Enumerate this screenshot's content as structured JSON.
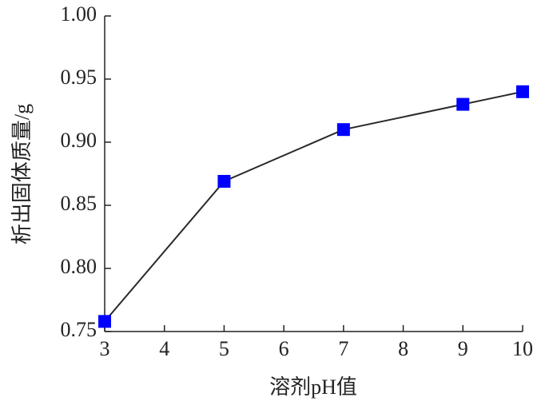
{
  "chart_data": {
    "type": "line",
    "x_label": "溶剂pH值",
    "y_label": "析出固体质量/g",
    "x": [
      3,
      5,
      7,
      9,
      10
    ],
    "series": [
      {
        "color": "#0000ff",
        "line_color": "#2a2a2a",
        "values": [
          0.758,
          0.869,
          0.91,
          0.93,
          0.94
        ]
      }
    ],
    "xlim": [
      3,
      10
    ],
    "xticks": [
      3,
      4,
      5,
      6,
      7,
      8,
      9,
      10
    ],
    "ylim": [
      0.75,
      1.0
    ],
    "yticks": [
      0.75,
      {
        "value": 0.8,
        "label": "0.80"
      },
      0.85,
      {
        "value": 0.9,
        "label": "0.90"
      },
      0.95,
      {
        "value": 1.0,
        "label": "1.00"
      }
    ],
    "grid": false
  }
}
